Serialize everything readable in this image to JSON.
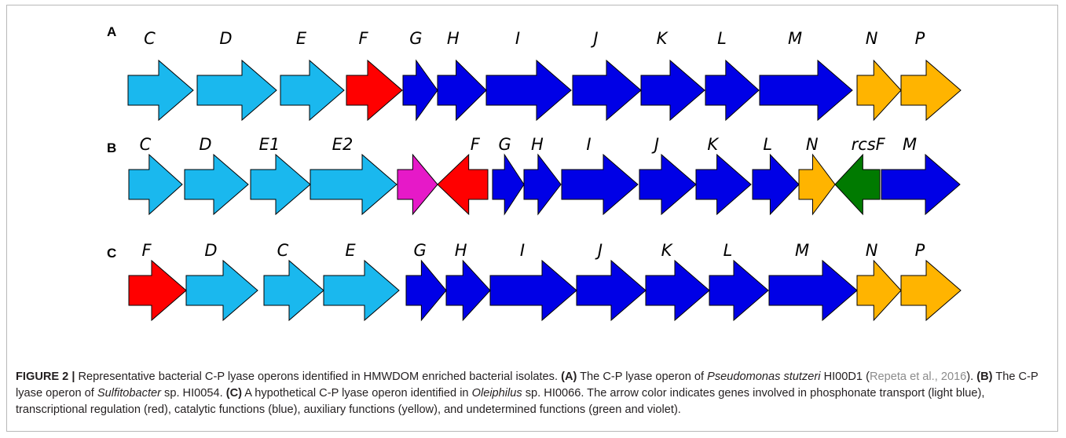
{
  "figure": {
    "panels": [
      {
        "label": "A",
        "genes": [
          {
            "name": "C",
            "color": "#1ab8ee",
            "dir": "right"
          },
          {
            "name": "D",
            "color": "#1ab8ee",
            "dir": "right"
          },
          {
            "name": "E",
            "color": "#1ab8ee",
            "dir": "right"
          },
          {
            "name": "F",
            "color": "#ff0000",
            "dir": "right"
          },
          {
            "name": "G",
            "color": "#0000e6",
            "dir": "right"
          },
          {
            "name": "H",
            "color": "#0000e6",
            "dir": "right"
          },
          {
            "name": "I",
            "color": "#0000e6",
            "dir": "right"
          },
          {
            "name": "J",
            "color": "#0000e6",
            "dir": "right"
          },
          {
            "name": "K",
            "color": "#0000e6",
            "dir": "right"
          },
          {
            "name": "L",
            "color": "#0000e6",
            "dir": "right"
          },
          {
            "name": "M",
            "color": "#0000e6",
            "dir": "right"
          },
          {
            "name": "N",
            "color": "#ffb400",
            "dir": "right"
          },
          {
            "name": "P",
            "color": "#ffb400",
            "dir": "right"
          }
        ]
      },
      {
        "label": "B",
        "genes": [
          {
            "name": "C",
            "color": "#1ab8ee",
            "dir": "right"
          },
          {
            "name": "D",
            "color": "#1ab8ee",
            "dir": "right"
          },
          {
            "name": "E1",
            "color": "#1ab8ee",
            "dir": "right"
          },
          {
            "name": "E2",
            "color": "#1ab8ee",
            "dir": "right"
          },
          {
            "name": "",
            "color": "#e619c8",
            "dir": "right"
          },
          {
            "name": "F",
            "color": "#ff0000",
            "dir": "left"
          },
          {
            "name": "G",
            "color": "#0000e6",
            "dir": "right"
          },
          {
            "name": "H",
            "color": "#0000e6",
            "dir": "right"
          },
          {
            "name": "I",
            "color": "#0000e6",
            "dir": "right"
          },
          {
            "name": "J",
            "color": "#0000e6",
            "dir": "right"
          },
          {
            "name": "K",
            "color": "#0000e6",
            "dir": "right"
          },
          {
            "name": "L",
            "color": "#0000e6",
            "dir": "right"
          },
          {
            "name": "N",
            "color": "#ffb400",
            "dir": "right"
          },
          {
            "name": "rcsF",
            "color": "#007a00",
            "dir": "left"
          },
          {
            "name": "M",
            "color": "#0000e6",
            "dir": "right"
          }
        ]
      },
      {
        "label": "C",
        "genes": [
          {
            "name": "F",
            "color": "#ff0000",
            "dir": "right"
          },
          {
            "name": "D",
            "color": "#1ab8ee",
            "dir": "right"
          },
          {
            "name": "C",
            "color": "#1ab8ee",
            "dir": "right"
          },
          {
            "name": "E",
            "color": "#1ab8ee",
            "dir": "right"
          },
          {
            "name": "G",
            "color": "#0000e6",
            "dir": "right"
          },
          {
            "name": "H",
            "color": "#0000e6",
            "dir": "right"
          },
          {
            "name": "I",
            "color": "#0000e6",
            "dir": "right"
          },
          {
            "name": "J",
            "color": "#0000e6",
            "dir": "right"
          },
          {
            "name": "K",
            "color": "#0000e6",
            "dir": "right"
          },
          {
            "name": "L",
            "color": "#0000e6",
            "dir": "right"
          },
          {
            "name": "M",
            "color": "#0000e6",
            "dir": "right"
          },
          {
            "name": "N",
            "color": "#ffb400",
            "dir": "right"
          },
          {
            "name": "P",
            "color": "#ffb400",
            "dir": "right"
          }
        ]
      }
    ]
  },
  "caption": {
    "figure_label": "FIGURE 2 |",
    "t1": " Representative bacterial C-P lyase operons identified in HMWDOM enriched bacterial isolates. ",
    "a_label": "(A)",
    "t2": " The C-P lyase operon of ",
    "a_species": "Pseudomonas stutzeri",
    "t3": " HI00D1 (",
    "a_ref": "Repeta et al., 2016",
    "t4": "). ",
    "b_label": "(B)",
    "t5": " The C-P lyase operon of ",
    "b_species": "Sulfitobacter",
    "t6": " sp. HI0054. ",
    "c_label": "(C)",
    "t7": " A hypothetical C-P lyase operon identified in ",
    "c_species": "Oleiphilus",
    "t8": " sp. HI0066. The arrow color indicates genes involved in phosphonate transport (light blue), transcriptional regulation (red), catalytic functions (blue), auxiliary functions (yellow), and undetermined functions (green and violet)."
  }
}
